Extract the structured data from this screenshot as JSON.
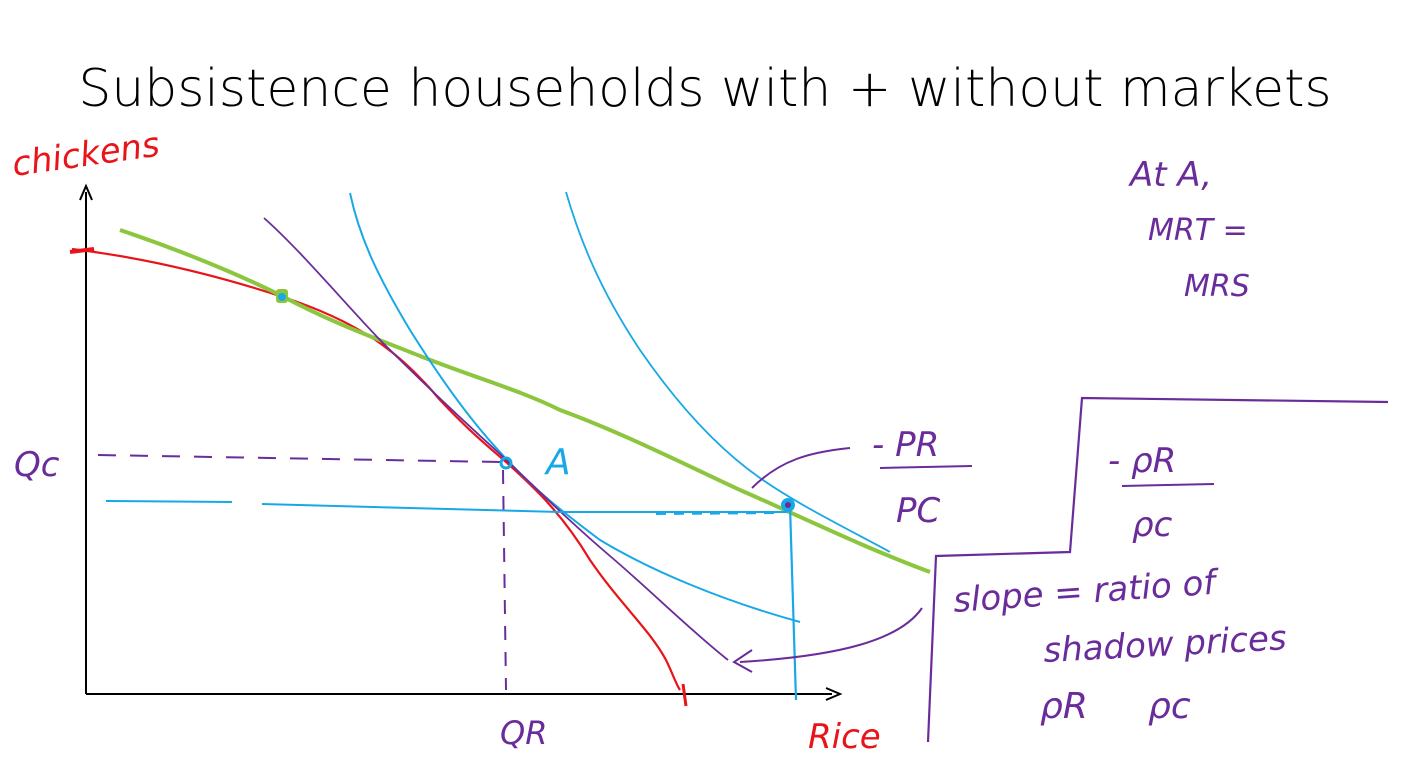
{
  "slide": {
    "title": "Subsistence households with + without markets"
  },
  "diagram": {
    "y_axis_label": "chickens",
    "x_axis_label": "Rice",
    "point_a_label": "A",
    "qc_label": "Qc",
    "qr_label": "QR",
    "note_at_a": [
      "At A,",
      "MRT =",
      "MRS"
    ],
    "price_ratio_market": {
      "numerator": "- PR",
      "denominator": "PC"
    },
    "price_ratio_shadow": {
      "numerator": "- ρR",
      "denominator": "ρc"
    },
    "slope_note": [
      "slope = ratio of",
      "shadow prices"
    ],
    "shadow_price_symbols": [
      "ρR",
      "ρc"
    ]
  },
  "colors": {
    "ppf": "#e8141a",
    "indifference": "#19a8e6",
    "budget_line": "#8cc63f",
    "annotation": "#6a2c9a",
    "axis": "#000000",
    "red_label": "#e8141a"
  }
}
